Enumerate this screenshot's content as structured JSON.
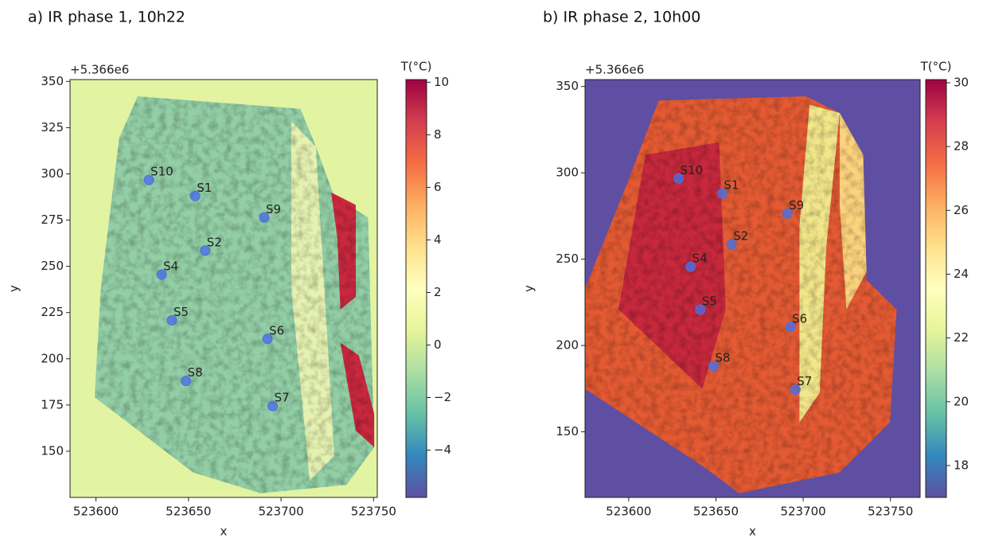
{
  "chart_data": [
    {
      "type": "scatter",
      "title": "a) IR phase 1, 10h22",
      "offset_text": "+5.366e6",
      "x_label": "x",
      "y_label": "y",
      "colorbar_label": "T(°C)",
      "xlim": [
        523586,
        523752
      ],
      "ylim": [
        125,
        351
      ],
      "xticks": [
        523600,
        523650,
        523700,
        523750
      ],
      "yticks": [
        150,
        175,
        200,
        225,
        250,
        275,
        300,
        325,
        350
      ],
      "clim": [
        -5.8,
        10.1
      ],
      "cticks": [
        {
          "value": -4,
          "label": "−4"
        },
        {
          "value": -2,
          "label": "−2"
        },
        0,
        2,
        4,
        6,
        8,
        10
      ],
      "colormap": [
        "#5e4fa2",
        "#3288bd",
        "#66c2a5",
        "#abdda4",
        "#e6f598",
        "#ffffbf",
        "#fee08b",
        "#fdae61",
        "#f46d43",
        "#d53e4f",
        "#9e0142"
      ],
      "point_color": "#4a6fe3",
      "point_labels": [
        "S10",
        "S1",
        "S9",
        "S2",
        "S4",
        "S5",
        "S6",
        "S8",
        "S7"
      ],
      "x": [
        523628.6,
        523653.6,
        523690.9,
        523659,
        523635.5,
        523641,
        523692.7,
        523648.6,
        523695.5
      ],
      "values": [
        296.7,
        288,
        276.4,
        258.5,
        245.6,
        220.8,
        210.7,
        188,
        174.4
      ]
    },
    {
      "type": "scatter",
      "title": "b) IR phase 2, 10h00",
      "offset_text": "+5.366e6",
      "x_label": "x",
      "y_label": "y",
      "colorbar_label": "T(°C)",
      "xlim": [
        523575,
        523767
      ],
      "ylim": [
        112,
        354
      ],
      "xticks": [
        523600,
        523650,
        523700,
        523750
      ],
      "yticks": [
        150,
        200,
        250,
        300,
        350
      ],
      "clim": [
        17,
        30.1
      ],
      "cticks": [
        18,
        20,
        22,
        24,
        26,
        28,
        30
      ],
      "colormap": [
        "#5e4fa2",
        "#3288bd",
        "#66c2a5",
        "#abdda4",
        "#e6f598",
        "#ffffbf",
        "#fee08b",
        "#fdae61",
        "#f46d43",
        "#d53e4f",
        "#9e0142"
      ],
      "point_color": "#4a6fe3",
      "point_labels": [
        "S10",
        "S1",
        "S9",
        "S2",
        "S4",
        "S5",
        "S6",
        "S8",
        "S7"
      ],
      "x": [
        523628.6,
        523653.6,
        523690.9,
        523659,
        523635.5,
        523641,
        523692.7,
        523648.6,
        523695.5
      ],
      "values": [
        296.7,
        288,
        276.4,
        258.5,
        245.6,
        220.8,
        210.7,
        188,
        174.4
      ]
    }
  ]
}
